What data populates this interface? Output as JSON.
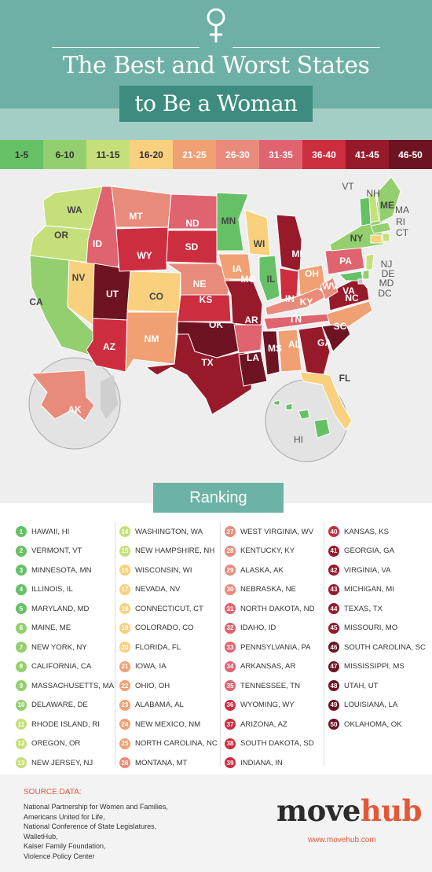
{
  "header": {
    "title_line1": "The Best and Worst States",
    "title_line2": "to Be a Woman",
    "icon": "female-symbol-icon"
  },
  "colors": {
    "band1": "#66c166",
    "band2": "#93cf6e",
    "band3": "#c5e07a",
    "band4": "#f8d07e",
    "band5": "#f0a072",
    "band6": "#e98b7a",
    "band7": "#e06370",
    "band8": "#cc2e40",
    "band9": "#971a2a",
    "band10": "#6d1322"
  },
  "legend": [
    {
      "label": "1-5",
      "band": 1
    },
    {
      "label": "6-10",
      "band": 2
    },
    {
      "label": "11-15",
      "band": 3
    },
    {
      "label": "16-20",
      "band": 4
    },
    {
      "label": "21-25",
      "band": 5
    },
    {
      "label": "26-30",
      "band": 6
    },
    {
      "label": "31-35",
      "band": 7
    },
    {
      "label": "36-40",
      "band": 8
    },
    {
      "label": "41-45",
      "band": 9
    },
    {
      "label": "46-50",
      "band": 10
    }
  ],
  "map": {
    "states": [
      {
        "abbr": "WA",
        "rank": 14
      },
      {
        "abbr": "OR",
        "rank": 12
      },
      {
        "abbr": "CA",
        "rank": 8
      },
      {
        "abbr": "ID",
        "rank": 32
      },
      {
        "abbr": "NV",
        "rank": 17
      },
      {
        "abbr": "UT",
        "rank": 48
      },
      {
        "abbr": "AZ",
        "rank": 37
      },
      {
        "abbr": "MT",
        "rank": 26
      },
      {
        "abbr": "WY",
        "rank": 36
      },
      {
        "abbr": "CO",
        "rank": 19
      },
      {
        "abbr": "NM",
        "rank": 24
      },
      {
        "abbr": "ND",
        "rank": 31
      },
      {
        "abbr": "SD",
        "rank": 38
      },
      {
        "abbr": "NE",
        "rank": 30
      },
      {
        "abbr": "KS",
        "rank": 40
      },
      {
        "abbr": "OK",
        "rank": 50
      },
      {
        "abbr": "TX",
        "rank": 44
      },
      {
        "abbr": "MN",
        "rank": 3
      },
      {
        "abbr": "IA",
        "rank": 21
      },
      {
        "abbr": "MO",
        "rank": 45
      },
      {
        "abbr": "AR",
        "rank": 34
      },
      {
        "abbr": "LA",
        "rank": 49
      },
      {
        "abbr": "WI",
        "rank": 16
      },
      {
        "abbr": "IL",
        "rank": 4
      },
      {
        "abbr": "MI",
        "rank": 43
      },
      {
        "abbr": "IN",
        "rank": 39
      },
      {
        "abbr": "OH",
        "rank": 22
      },
      {
        "abbr": "KY",
        "rank": 28
      },
      {
        "abbr": "TN",
        "rank": 35
      },
      {
        "abbr": "MS",
        "rank": 47
      },
      {
        "abbr": "AL",
        "rank": 23
      },
      {
        "abbr": "GA",
        "rank": 41
      },
      {
        "abbr": "FL",
        "rank": 20
      },
      {
        "abbr": "SC",
        "rank": 46
      },
      {
        "abbr": "NC",
        "rank": 25
      },
      {
        "abbr": "VA",
        "rank": 42
      },
      {
        "abbr": "WV",
        "rank": 27
      },
      {
        "abbr": "PA",
        "rank": 33
      },
      {
        "abbr": "NY",
        "rank": 7
      },
      {
        "abbr": "ME",
        "rank": 6
      },
      {
        "abbr": "NH",
        "rank": 15
      },
      {
        "abbr": "VT",
        "rank": 2
      },
      {
        "abbr": "MA",
        "rank": 9
      },
      {
        "abbr": "RI",
        "rank": 11
      },
      {
        "abbr": "CT",
        "rank": 18
      },
      {
        "abbr": "NJ",
        "rank": 13
      },
      {
        "abbr": "DE",
        "rank": 10
      },
      {
        "abbr": "MD",
        "rank": 5
      },
      {
        "abbr": "DC",
        "rank": null
      },
      {
        "abbr": "AK",
        "rank": 29
      },
      {
        "abbr": "HI",
        "rank": 1
      }
    ]
  },
  "ranking": {
    "title": "Ranking",
    "items": [
      {
        "rank": "1",
        "name": "HAWAII, HI",
        "band": 1
      },
      {
        "rank": "2",
        "name": "VERMONT, VT",
        "band": 1
      },
      {
        "rank": "3",
        "name": "MINNESOTA, MN",
        "band": 1
      },
      {
        "rank": "4",
        "name": "ILLINOIS, IL",
        "band": 1
      },
      {
        "rank": "5",
        "name": "MARYLAND, MD",
        "band": 1
      },
      {
        "rank": "6",
        "name": "MAINE, ME",
        "band": 2
      },
      {
        "rank": "7",
        "name": "NEW YORK, NY",
        "band": 2
      },
      {
        "rank": "8",
        "name": "CALIFORNIA, CA",
        "band": 2
      },
      {
        "rank": "9",
        "name": "MASSACHUSETTS, MA",
        "band": 2
      },
      {
        "rank": "10",
        "name": "DELAWARE, DE",
        "band": 2
      },
      {
        "rank": "11",
        "name": "RHODE ISLAND, RI",
        "band": 3
      },
      {
        "rank": "12",
        "name": "OREGON, OR",
        "band": 3
      },
      {
        "rank": "13",
        "name": "NEW JERSEY, NJ",
        "band": 3
      },
      {
        "rank": "14",
        "name": "WASHINGTON, WA",
        "band": 3
      },
      {
        "rank": "15",
        "name": "NEW HAMPSHIRE, NH",
        "band": 3
      },
      {
        "rank": "16",
        "name": "WISCONSIN, WI",
        "band": 4
      },
      {
        "rank": "17",
        "name": "NEVADA, NV",
        "band": 4
      },
      {
        "rank": "18",
        "name": "CONNECTICUT, CT",
        "band": 4
      },
      {
        "rank": "19",
        "name": "COLORADO, CO",
        "band": 4
      },
      {
        "rank": "20",
        "name": "FLORIDA, FL",
        "band": 4
      },
      {
        "rank": "21",
        "name": "IOWA, IA",
        "band": 5
      },
      {
        "rank": "22",
        "name": "OHIO, OH",
        "band": 5
      },
      {
        "rank": "23",
        "name": "ALABAMA, AL",
        "band": 5
      },
      {
        "rank": "24",
        "name": "NEW MEXICO, NM",
        "band": 5
      },
      {
        "rank": "25",
        "name": "NORTH CAROLINA, NC",
        "band": 5
      },
      {
        "rank": "26",
        "name": "MONTANA, MT",
        "band": 6
      },
      {
        "rank": "27",
        "name": "WEST VIRGINIA, WV",
        "band": 6
      },
      {
        "rank": "28",
        "name": "KENTUCKY, KY",
        "band": 6
      },
      {
        "rank": "29",
        "name": "ALASKA, AK",
        "band": 6
      },
      {
        "rank": "30",
        "name": "NEBRASKA, NE",
        "band": 6
      },
      {
        "rank": "31",
        "name": "NORTH DAKOTA, ND",
        "band": 7
      },
      {
        "rank": "32",
        "name": "IDAHO, ID",
        "band": 7
      },
      {
        "rank": "33",
        "name": "PENNSYLVANIA, PA",
        "band": 7
      },
      {
        "rank": "34",
        "name": "ARKANSAS, AR",
        "band": 7
      },
      {
        "rank": "35",
        "name": "TENNESSEE, TN",
        "band": 7
      },
      {
        "rank": "36",
        "name": "WYOMING, WY",
        "band": 8
      },
      {
        "rank": "37",
        "name": "ARIZONA, AZ",
        "band": 8
      },
      {
        "rank": "38",
        "name": "SOUTH DAKOTA, SD",
        "band": 8
      },
      {
        "rank": "39",
        "name": "INDIANA, IN",
        "band": 8
      },
      {
        "rank": "40",
        "name": "KANSAS, KS",
        "band": 8
      },
      {
        "rank": "41",
        "name": "GEORGIA, GA",
        "band": 9
      },
      {
        "rank": "42",
        "name": "VIRGINIA, VA",
        "band": 9
      },
      {
        "rank": "43",
        "name": "MICHIGAN, MI",
        "band": 9
      },
      {
        "rank": "44",
        "name": "TEXAS, TX",
        "band": 9
      },
      {
        "rank": "45",
        "name": "MISSOURI, MO",
        "band": 9
      },
      {
        "rank": "46",
        "name": "SOUTH CAROLINA, SC",
        "band": 10
      },
      {
        "rank": "47",
        "name": "MISSISSIPPI, MS",
        "band": 10
      },
      {
        "rank": "48",
        "name": "UTAH, UT",
        "band": 10
      },
      {
        "rank": "49",
        "name": "LOUISIANA, LA",
        "band": 10
      },
      {
        "rank": "50",
        "name": "OKLAHOMA, OK",
        "band": 10
      }
    ]
  },
  "footer": {
    "source_title": "SOURCE DATA:",
    "sources": [
      "National Partnership for Women and Families,",
      "Americans United for Life,",
      "National Conference of State Legislatures,",
      "WalletHub,",
      "Kaiser Family Foundation,",
      "Violence Policy Center"
    ],
    "brand_part1": "move",
    "brand_part2": "hub",
    "brand_url": "www.movehub.com"
  }
}
